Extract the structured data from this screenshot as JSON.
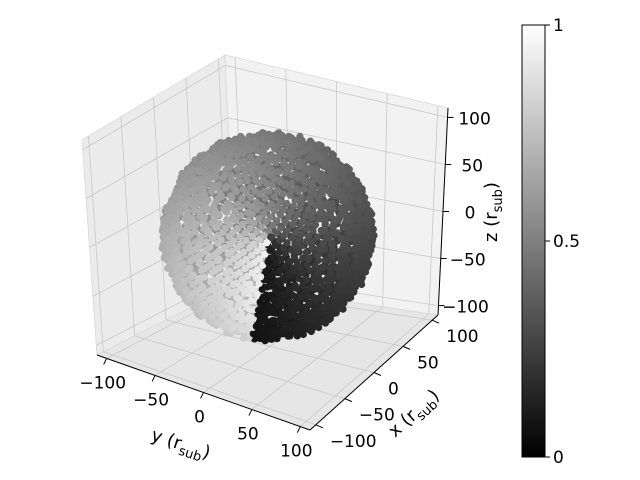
{
  "chart_data": {
    "type": "scatter",
    "projection": "3d",
    "colormap": "gray",
    "xlabel": "x (r",
    "xlabel_sub": "sub",
    "ylabel": "y (r",
    "ylabel_sub": "sub",
    "zlabel": "z (r",
    "zlabel_sub": "sub",
    "label_close": ")",
    "xlim": [
      -110,
      110
    ],
    "ylim": [
      -110,
      110
    ],
    "zlim": [
      -110,
      110
    ],
    "x_ticks": [
      "−100",
      "−50",
      "0",
      "50",
      "100"
    ],
    "y_ticks": [
      "−100",
      "−50",
      "0",
      "50",
      "100"
    ],
    "z_ticks": [
      "−100",
      "−50",
      "0",
      "50",
      "100"
    ],
    "colorbar": {
      "ticks": [
        "0",
        "0.5",
        "1"
      ],
      "range": [
        0,
        1
      ]
    },
    "points": {
      "shape": "sphere",
      "radius": 100,
      "count": 2600,
      "color_value": "azimuthal angle normalized to [0,1]"
    },
    "grid": true
  }
}
